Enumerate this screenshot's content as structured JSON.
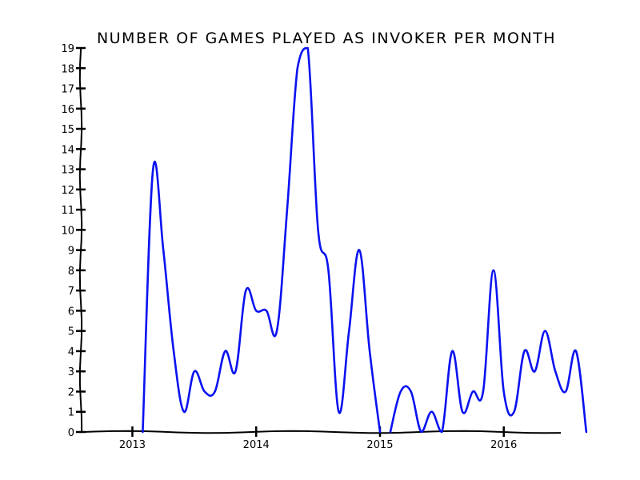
{
  "chart_data": {
    "type": "line",
    "title": "NUMBER OF GAMES PLAYED AS INVOKER PER MONTH",
    "xlabel": "",
    "ylabel": "",
    "x_unit": "month",
    "xlim": [
      "2012-08",
      "2016-08"
    ],
    "ylim": [
      0,
      19
    ],
    "grid": false,
    "legend": "none",
    "line_color": "#0a12f0",
    "x_ticks": [
      {
        "label": "2013",
        "value": "2013-01"
      },
      {
        "label": "2014",
        "value": "2014-01"
      },
      {
        "label": "2015",
        "value": "2015-01"
      },
      {
        "label": "2016",
        "value": "2016-01"
      }
    ],
    "y_ticks": [
      0,
      1,
      2,
      3,
      4,
      5,
      6,
      7,
      8,
      9,
      10,
      11,
      12,
      13,
      14,
      15,
      16,
      17,
      18,
      19
    ],
    "series": [
      {
        "segments": [
          [
            {
              "x": "2013-02",
              "y": 0
            },
            {
              "x": "2013-03",
              "y": 13
            },
            {
              "x": "2013-04",
              "y": 9
            },
            {
              "x": "2013-05",
              "y": 4
            },
            {
              "x": "2013-06",
              "y": 1
            },
            {
              "x": "2013-07",
              "y": 3
            },
            {
              "x": "2013-08",
              "y": 2
            },
            {
              "x": "2013-09",
              "y": 2
            },
            {
              "x": "2013-10",
              "y": 4
            },
            {
              "x": "2013-11",
              "y": 3
            },
            {
              "x": "2013-12",
              "y": 7
            },
            {
              "x": "2014-01",
              "y": 6
            },
            {
              "x": "2014-02",
              "y": 6
            },
            {
              "x": "2014-03",
              "y": 5
            },
            {
              "x": "2014-04",
              "y": 11
            },
            {
              "x": "2014-05",
              "y": 18
            },
            {
              "x": "2014-06",
              "y": 19
            },
            {
              "x": "2014-07",
              "y": 10
            },
            {
              "x": "2014-08",
              "y": 8
            },
            {
              "x": "2014-09",
              "y": 1
            },
            {
              "x": "2014-10",
              "y": 5
            },
            {
              "x": "2014-11",
              "y": 9
            },
            {
              "x": "2014-12",
              "y": 4
            },
            {
              "x": "2015-01",
              "y": 0
            }
          ],
          [
            {
              "x": "2015-02",
              "y": 0
            },
            {
              "x": "2015-03",
              "y": 2
            },
            {
              "x": "2015-04",
              "y": 2
            },
            {
              "x": "2015-05",
              "y": 0
            },
            {
              "x": "2015-06",
              "y": 1
            },
            {
              "x": "2015-07",
              "y": 0
            },
            {
              "x": "2015-08",
              "y": 4
            },
            {
              "x": "2015-09",
              "y": 1
            },
            {
              "x": "2015-10",
              "y": 2
            },
            {
              "x": "2015-11",
              "y": 2
            },
            {
              "x": "2015-12",
              "y": 8
            },
            {
              "x": "2016-01",
              "y": 2
            },
            {
              "x": "2016-02",
              "y": 1
            },
            {
              "x": "2016-03",
              "y": 4
            },
            {
              "x": "2016-04",
              "y": 3
            },
            {
              "x": "2016-05",
              "y": 5
            },
            {
              "x": "2016-06",
              "y": 3
            },
            {
              "x": "2016-07",
              "y": 2
            },
            {
              "x": "2016-08",
              "y": 4
            },
            {
              "x": "2016-09",
              "y": 0
            }
          ]
        ]
      }
    ]
  }
}
